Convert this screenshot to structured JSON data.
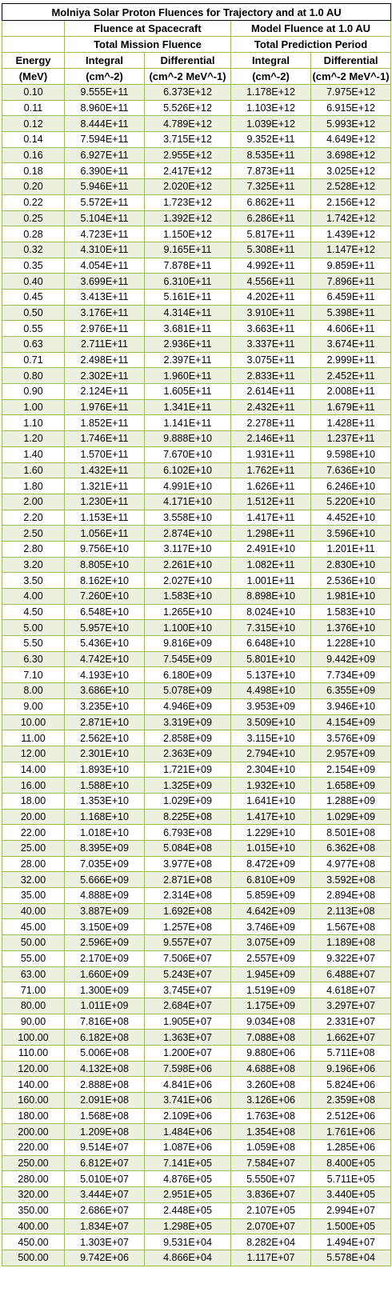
{
  "title": "Molniya Solar Proton Fluences for Trajectory and at 1.0 AU",
  "group_headers": {
    "spacecraft": "Fluence at Spacecraft",
    "model": "Model Fluence at 1.0 AU",
    "spacecraft_sub": "Total Mission Fluence",
    "model_sub": "Total Prediction Period"
  },
  "columns": {
    "energy_line1": "Energy",
    "energy_line2": "(MeV)",
    "sc_integral_line1": "Integral",
    "sc_integral_line2": "(cm^-2)",
    "sc_differential_line1": "Differential",
    "sc_differential_line2": "(cm^-2 MeV^-1)",
    "m_integral_line1": "Integral",
    "m_integral_line2": "(cm^-2)",
    "m_differential_line1": "Differential",
    "m_differential_line2": "(cm^-2 MeV^-1)"
  },
  "colors": {
    "border": "#9bbb59",
    "band": "#ebf1de"
  },
  "rows": [
    [
      "0.10",
      "9.555E+11",
      "6.373E+12",
      "1.178E+12",
      "7.975E+12"
    ],
    [
      "0.11",
      "8.960E+11",
      "5.526E+12",
      "1.103E+12",
      "6.915E+12"
    ],
    [
      "0.12",
      "8.444E+11",
      "4.789E+12",
      "1.039E+12",
      "5.993E+12"
    ],
    [
      "0.14",
      "7.594E+11",
      "3.715E+12",
      "9.352E+11",
      "4.649E+12"
    ],
    [
      "0.16",
      "6.927E+11",
      "2.955E+12",
      "8.535E+11",
      "3.698E+12"
    ],
    [
      "0.18",
      "6.390E+11",
      "2.417E+12",
      "7.873E+11",
      "3.025E+12"
    ],
    [
      "0.20",
      "5.946E+11",
      "2.020E+12",
      "7.325E+11",
      "2.528E+12"
    ],
    [
      "0.22",
      "5.572E+11",
      "1.723E+12",
      "6.862E+11",
      "2.156E+12"
    ],
    [
      "0.25",
      "5.104E+11",
      "1.392E+12",
      "6.286E+11",
      "1.742E+12"
    ],
    [
      "0.28",
      "4.723E+11",
      "1.150E+12",
      "5.817E+11",
      "1.439E+12"
    ],
    [
      "0.32",
      "4.310E+11",
      "9.165E+11",
      "5.308E+11",
      "1.147E+12"
    ],
    [
      "0.35",
      "4.054E+11",
      "7.878E+11",
      "4.992E+11",
      "9.859E+11"
    ],
    [
      "0.40",
      "3.699E+11",
      "6.310E+11",
      "4.556E+11",
      "7.896E+11"
    ],
    [
      "0.45",
      "3.413E+11",
      "5.161E+11",
      "4.202E+11",
      "6.459E+11"
    ],
    [
      "0.50",
      "3.176E+11",
      "4.314E+11",
      "3.910E+11",
      "5.398E+11"
    ],
    [
      "0.55",
      "2.976E+11",
      "3.681E+11",
      "3.663E+11",
      "4.606E+11"
    ],
    [
      "0.63",
      "2.711E+11",
      "2.936E+11",
      "3.337E+11",
      "3.674E+11"
    ],
    [
      "0.71",
      "2.498E+11",
      "2.397E+11",
      "3.075E+11",
      "2.999E+11"
    ],
    [
      "0.80",
      "2.302E+11",
      "1.960E+11",
      "2.833E+11",
      "2.452E+11"
    ],
    [
      "0.90",
      "2.124E+11",
      "1.605E+11",
      "2.614E+11",
      "2.008E+11"
    ],
    [
      "1.00",
      "1.976E+11",
      "1.341E+11",
      "2.432E+11",
      "1.679E+11"
    ],
    [
      "1.10",
      "1.852E+11",
      "1.141E+11",
      "2.278E+11",
      "1.428E+11"
    ],
    [
      "1.20",
      "1.746E+11",
      "9.888E+10",
      "2.146E+11",
      "1.237E+11"
    ],
    [
      "1.40",
      "1.570E+11",
      "7.670E+10",
      "1.931E+11",
      "9.598E+10"
    ],
    [
      "1.60",
      "1.432E+11",
      "6.102E+10",
      "1.762E+11",
      "7.636E+10"
    ],
    [
      "1.80",
      "1.321E+11",
      "4.991E+10",
      "1.626E+11",
      "6.246E+10"
    ],
    [
      "2.00",
      "1.230E+11",
      "4.171E+10",
      "1.512E+11",
      "5.220E+10"
    ],
    [
      "2.20",
      "1.153E+11",
      "3.558E+10",
      "1.417E+11",
      "4.452E+10"
    ],
    [
      "2.50",
      "1.056E+11",
      "2.874E+10",
      "1.298E+11",
      "3.596E+10"
    ],
    [
      "2.80",
      "9.756E+10",
      "3.117E+10",
      "2.491E+10",
      "1.201E+11"
    ],
    [
      "3.20",
      "8.805E+10",
      "2.261E+10",
      "1.082E+11",
      "2.830E+10"
    ],
    [
      "3.50",
      "8.162E+10",
      "2.027E+10",
      "1.001E+11",
      "2.536E+10"
    ],
    [
      "4.00",
      "7.260E+10",
      "1.583E+10",
      "8.898E+10",
      "1.981E+10"
    ],
    [
      "4.50",
      "6.548E+10",
      "1.265E+10",
      "8.024E+10",
      "1.583E+10"
    ],
    [
      "5.00",
      "5.957E+10",
      "1.100E+10",
      "7.315E+10",
      "1.376E+10"
    ],
    [
      "5.50",
      "5.436E+10",
      "9.816E+09",
      "6.648E+10",
      "1.228E+10"
    ],
    [
      "6.30",
      "4.742E+10",
      "7.545E+09",
      "5.801E+10",
      "9.442E+09"
    ],
    [
      "7.10",
      "4.193E+10",
      "6.180E+09",
      "5.137E+10",
      "7.734E+09"
    ],
    [
      "8.00",
      "3.686E+10",
      "5.078E+09",
      "4.498E+10",
      "6.355E+09"
    ],
    [
      "9.00",
      "3.235E+10",
      "4.946E+09",
      "3.953E+09",
      "3.946E+10"
    ],
    [
      "10.00",
      "2.871E+10",
      "3.319E+09",
      "3.509E+10",
      "4.154E+09"
    ],
    [
      "11.00",
      "2.562E+10",
      "2.858E+09",
      "3.115E+10",
      "3.576E+09"
    ],
    [
      "12.00",
      "2.301E+10",
      "2.363E+09",
      "2.794E+10",
      "2.957E+09"
    ],
    [
      "14.00",
      "1.893E+10",
      "1.721E+09",
      "2.304E+10",
      "2.154E+09"
    ],
    [
      "16.00",
      "1.588E+10",
      "1.325E+09",
      "1.932E+10",
      "1.658E+09"
    ],
    [
      "18.00",
      "1.353E+10",
      "1.029E+09",
      "1.641E+10",
      "1.288E+09"
    ],
    [
      "20.00",
      "1.168E+10",
      "8.225E+08",
      "1.417E+10",
      "1.029E+09"
    ],
    [
      "22.00",
      "1.018E+10",
      "6.793E+08",
      "1.229E+10",
      "8.501E+08"
    ],
    [
      "25.00",
      "8.395E+09",
      "5.084E+08",
      "1.015E+10",
      "6.362E+08"
    ],
    [
      "28.00",
      "7.035E+09",
      "3.977E+08",
      "8.472E+09",
      "4.977E+08"
    ],
    [
      "32.00",
      "5.666E+09",
      "2.871E+08",
      "6.810E+09",
      "3.592E+08"
    ],
    [
      "35.00",
      "4.888E+09",
      "2.314E+08",
      "5.859E+09",
      "2.894E+08"
    ],
    [
      "40.00",
      "3.887E+09",
      "1.692E+08",
      "4.642E+09",
      "2.113E+08"
    ],
    [
      "45.00",
      "3.150E+09",
      "1.257E+08",
      "3.746E+09",
      "1.567E+08"
    ],
    [
      "50.00",
      "2.596E+09",
      "9.557E+07",
      "3.075E+09",
      "1.189E+08"
    ],
    [
      "55.00",
      "2.170E+09",
      "7.506E+07",
      "2.557E+09",
      "9.322E+07"
    ],
    [
      "63.00",
      "1.660E+09",
      "5.243E+07",
      "1.945E+09",
      "6.488E+07"
    ],
    [
      "71.00",
      "1.300E+09",
      "3.745E+07",
      "1.519E+09",
      "4.618E+07"
    ],
    [
      "80.00",
      "1.011E+09",
      "2.684E+07",
      "1.175E+09",
      "3.297E+07"
    ],
    [
      "90.00",
      "7.816E+08",
      "1.905E+07",
      "9.034E+08",
      "2.331E+07"
    ],
    [
      "100.00",
      "6.182E+08",
      "1.363E+07",
      "7.088E+08",
      "1.662E+07"
    ],
    [
      "110.00",
      "5.006E+08",
      "1.200E+07",
      "9.880E+06",
      "5.711E+08"
    ],
    [
      "120.00",
      "4.132E+08",
      "7.598E+06",
      "4.688E+08",
      "9.196E+06"
    ],
    [
      "140.00",
      "2.888E+08",
      "4.841E+06",
      "3.260E+08",
      "5.824E+06"
    ],
    [
      "160.00",
      "2.091E+08",
      "3.741E+06",
      "3.126E+06",
      "2.359E+08"
    ],
    [
      "180.00",
      "1.568E+08",
      "2.109E+06",
      "1.763E+08",
      "2.512E+06"
    ],
    [
      "200.00",
      "1.209E+08",
      "1.484E+06",
      "1.354E+08",
      "1.761E+06"
    ],
    [
      "220.00",
      "9.514E+07",
      "1.087E+06",
      "1.059E+08",
      "1.285E+06"
    ],
    [
      "250.00",
      "6.812E+07",
      "7.141E+05",
      "7.584E+07",
      "8.400E+05"
    ],
    [
      "280.00",
      "5.010E+07",
      "4.876E+05",
      "5.550E+07",
      "5.711E+05"
    ],
    [
      "320.00",
      "3.444E+07",
      "2.951E+05",
      "3.836E+07",
      "3.440E+05"
    ],
    [
      "350.00",
      "2.686E+07",
      "2.448E+05",
      "2.107E+05",
      "2.994E+07"
    ],
    [
      "400.00",
      "1.834E+07",
      "1.298E+05",
      "2.070E+07",
      "1.500E+05"
    ],
    [
      "450.00",
      "1.303E+07",
      "9.531E+04",
      "8.282E+04",
      "1.494E+07"
    ],
    [
      "500.00",
      "9.742E+06",
      "4.866E+04",
      "1.117E+07",
      "5.578E+04"
    ]
  ]
}
